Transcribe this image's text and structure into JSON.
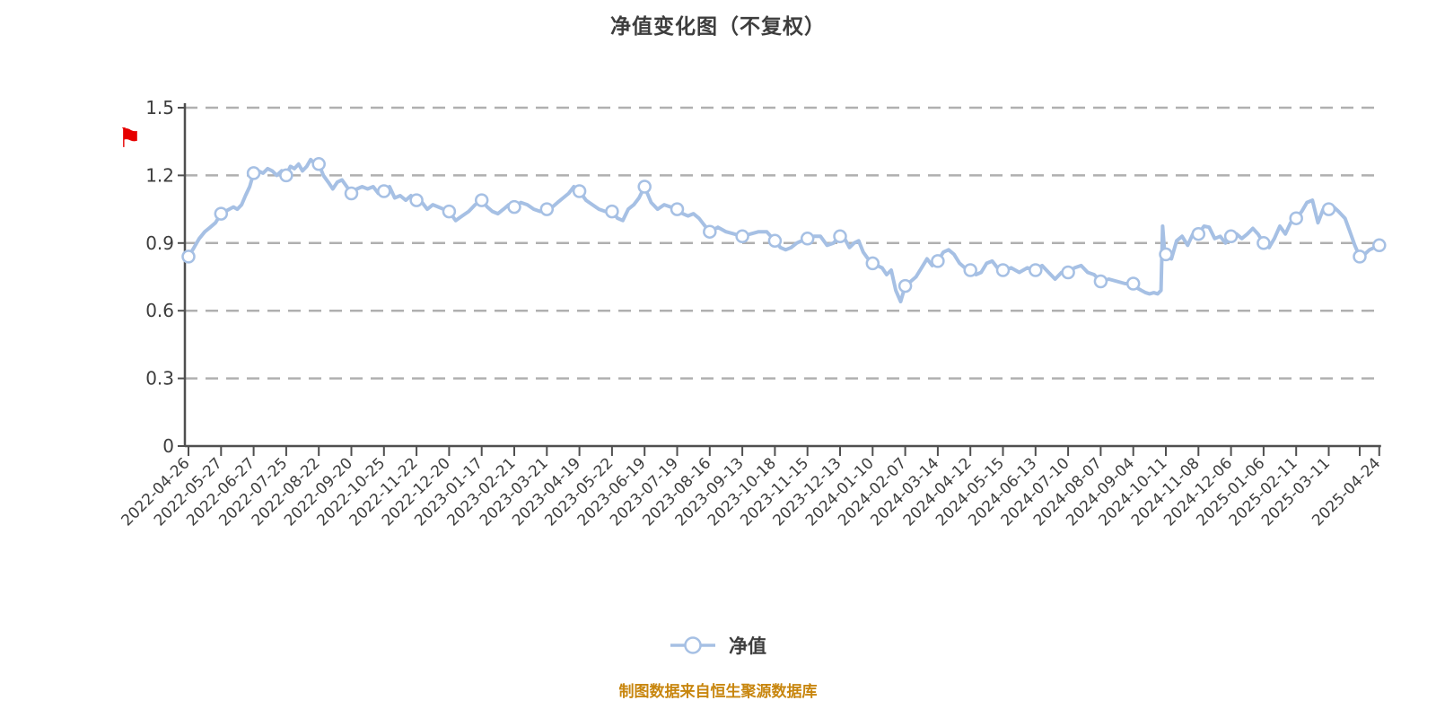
{
  "title": "净值变化图（不复权）",
  "legend": {
    "label": "净值"
  },
  "footer": {
    "source_note": "制图数据来自恒生聚源数据库"
  },
  "flag_annotation": {
    "symbol": "⚑",
    "color": "#e60000"
  },
  "colors": {
    "background": "#ffffff",
    "line": "#a6c0e4",
    "marker_fill": "#ffffff",
    "marker_stroke": "#a6c0e4",
    "grid": "#b0b0b0",
    "axis": "#4f4f4f",
    "tick_text": "#3d3d3d",
    "title_text": "#3d3d3d",
    "footer_text": "#c8860e",
    "flag": "#e60000"
  },
  "chart_data": {
    "type": "line",
    "title": "净值变化图（不复权）",
    "ylabel": "",
    "xlabel": "",
    "ylim": [
      0,
      1.5
    ],
    "yticks": [
      0,
      0.3,
      0.6,
      0.9,
      1.2,
      1.5
    ],
    "grid": "horizontal-dashed",
    "legend_position": "bottom-center",
    "x_ticks": [
      {
        "u": 0,
        "label": "2022-04-26"
      },
      {
        "u": 1,
        "label": "2022-05-27"
      },
      {
        "u": 2,
        "label": "2022-06-27"
      },
      {
        "u": 3,
        "label": "2022-07-25"
      },
      {
        "u": 4,
        "label": "2022-08-22"
      },
      {
        "u": 5,
        "label": "2022-09-20"
      },
      {
        "u": 6,
        "label": "2022-10-25"
      },
      {
        "u": 7,
        "label": "2022-11-22"
      },
      {
        "u": 8,
        "label": "2022-12-20"
      },
      {
        "u": 9,
        "label": "2023-01-17"
      },
      {
        "u": 10,
        "label": "2023-02-21"
      },
      {
        "u": 11,
        "label": "2023-03-21"
      },
      {
        "u": 12,
        "label": "2023-04-19"
      },
      {
        "u": 13,
        "label": "2023-05-22"
      },
      {
        "u": 14,
        "label": "2023-06-19"
      },
      {
        "u": 15,
        "label": "2023-07-19"
      },
      {
        "u": 16,
        "label": "2023-08-16"
      },
      {
        "u": 17,
        "label": "2023-09-13"
      },
      {
        "u": 18,
        "label": "2023-10-18"
      },
      {
        "u": 19,
        "label": "2023-11-15"
      },
      {
        "u": 20,
        "label": "2023-12-13"
      },
      {
        "u": 21,
        "label": "2024-01-10"
      },
      {
        "u": 22,
        "label": "2024-02-07"
      },
      {
        "u": 23,
        "label": "2024-03-14"
      },
      {
        "u": 24,
        "label": "2024-04-12"
      },
      {
        "u": 25,
        "label": "2024-05-15"
      },
      {
        "u": 26,
        "label": "2024-06-13"
      },
      {
        "u": 27,
        "label": "2024-07-10"
      },
      {
        "u": 28,
        "label": "2024-08-07"
      },
      {
        "u": 29,
        "label": "2024-09-04"
      },
      {
        "u": 30,
        "label": "2024-10-11"
      },
      {
        "u": 31,
        "label": "2024-11-08"
      },
      {
        "u": 32,
        "label": "2024-12-06"
      },
      {
        "u": 33,
        "label": "2025-01-06"
      },
      {
        "u": 34,
        "label": "2025-02-11"
      },
      {
        "u": 35,
        "label": "2025-03-11"
      },
      {
        "u": 35.95,
        "label": ""
      },
      {
        "u": 36.55,
        "label": "2025-04-24"
      }
    ],
    "series": [
      {
        "name": "净值",
        "points": [
          [
            0,
            0.84
          ],
          [
            0.17,
            0.88
          ],
          [
            0.33,
            0.92
          ],
          [
            0.5,
            0.95
          ],
          [
            0.67,
            0.97
          ],
          [
            0.83,
            0.99
          ],
          [
            1,
            1.03
          ],
          [
            1.13,
            1.04
          ],
          [
            1.25,
            1.05
          ],
          [
            1.38,
            1.06
          ],
          [
            1.5,
            1.05
          ],
          [
            1.63,
            1.07
          ],
          [
            1.75,
            1.11
          ],
          [
            1.88,
            1.15
          ],
          [
            2,
            1.21
          ],
          [
            2.14,
            1.22
          ],
          [
            2.29,
            1.21
          ],
          [
            2.43,
            1.23
          ],
          [
            2.57,
            1.22
          ],
          [
            2.71,
            1.2
          ],
          [
            2.86,
            1.22
          ],
          [
            3,
            1.2
          ],
          [
            3.13,
            1.24
          ],
          [
            3.25,
            1.23
          ],
          [
            3.38,
            1.25
          ],
          [
            3.5,
            1.22
          ],
          [
            3.63,
            1.24
          ],
          [
            3.75,
            1.27
          ],
          [
            3.88,
            1.25
          ],
          [
            4,
            1.25
          ],
          [
            4.14,
            1.2
          ],
          [
            4.29,
            1.17
          ],
          [
            4.43,
            1.14
          ],
          [
            4.57,
            1.17
          ],
          [
            4.71,
            1.18
          ],
          [
            4.86,
            1.15
          ],
          [
            5,
            1.12
          ],
          [
            5.17,
            1.14
          ],
          [
            5.33,
            1.15
          ],
          [
            5.5,
            1.14
          ],
          [
            5.67,
            1.15
          ],
          [
            5.83,
            1.12
          ],
          [
            6,
            1.13
          ],
          [
            6.17,
            1.15
          ],
          [
            6.33,
            1.1
          ],
          [
            6.5,
            1.11
          ],
          [
            6.67,
            1.09
          ],
          [
            6.83,
            1.11
          ],
          [
            7,
            1.09
          ],
          [
            7.17,
            1.08
          ],
          [
            7.33,
            1.05
          ],
          [
            7.5,
            1.07
          ],
          [
            7.67,
            1.06
          ],
          [
            7.83,
            1.05
          ],
          [
            8,
            1.04
          ],
          [
            8.2,
            1.0
          ],
          [
            8.4,
            1.02
          ],
          [
            8.6,
            1.04
          ],
          [
            8.8,
            1.07
          ],
          [
            9,
            1.09
          ],
          [
            9.17,
            1.06
          ],
          [
            9.33,
            1.04
          ],
          [
            9.5,
            1.03
          ],
          [
            9.67,
            1.05
          ],
          [
            9.83,
            1.07
          ],
          [
            10,
            1.06
          ],
          [
            10.2,
            1.08
          ],
          [
            10.4,
            1.07
          ],
          [
            10.6,
            1.05
          ],
          [
            10.8,
            1.04
          ],
          [
            11,
            1.05
          ],
          [
            11.17,
            1.06
          ],
          [
            11.33,
            1.08
          ],
          [
            11.5,
            1.1
          ],
          [
            11.67,
            1.12
          ],
          [
            11.83,
            1.15
          ],
          [
            12,
            1.13
          ],
          [
            12.2,
            1.09
          ],
          [
            12.4,
            1.07
          ],
          [
            12.6,
            1.05
          ],
          [
            12.8,
            1.04
          ],
          [
            13,
            1.04
          ],
          [
            13.17,
            1.01
          ],
          [
            13.33,
            1.0
          ],
          [
            13.5,
            1.05
          ],
          [
            13.67,
            1.07
          ],
          [
            13.83,
            1.1
          ],
          [
            14,
            1.15
          ],
          [
            14.2,
            1.08
          ],
          [
            14.4,
            1.05
          ],
          [
            14.6,
            1.07
          ],
          [
            14.8,
            1.06
          ],
          [
            15,
            1.05
          ],
          [
            15.17,
            1.03
          ],
          [
            15.33,
            1.02
          ],
          [
            15.5,
            1.03
          ],
          [
            15.67,
            1.01
          ],
          [
            15.83,
            0.98
          ],
          [
            16,
            0.95
          ],
          [
            16.25,
            0.97
          ],
          [
            16.5,
            0.95
          ],
          [
            16.75,
            0.94
          ],
          [
            17,
            0.93
          ],
          [
            17.25,
            0.94
          ],
          [
            17.5,
            0.95
          ],
          [
            17.75,
            0.95
          ],
          [
            18,
            0.91
          ],
          [
            18.17,
            0.88
          ],
          [
            18.33,
            0.87
          ],
          [
            18.5,
            0.88
          ],
          [
            18.67,
            0.9
          ],
          [
            18.83,
            0.91
          ],
          [
            19,
            0.92
          ],
          [
            19.2,
            0.93
          ],
          [
            19.4,
            0.93
          ],
          [
            19.6,
            0.89
          ],
          [
            19.8,
            0.9
          ],
          [
            20,
            0.93
          ],
          [
            20.14,
            0.92
          ],
          [
            20.29,
            0.88
          ],
          [
            20.43,
            0.9
          ],
          [
            20.57,
            0.91
          ],
          [
            20.71,
            0.86
          ],
          [
            20.86,
            0.83
          ],
          [
            21,
            0.81
          ],
          [
            21.14,
            0.8
          ],
          [
            21.29,
            0.79
          ],
          [
            21.43,
            0.76
          ],
          [
            21.57,
            0.78
          ],
          [
            21.71,
            0.69
          ],
          [
            21.86,
            0.64
          ],
          [
            22,
            0.71
          ],
          [
            22.17,
            0.73
          ],
          [
            22.33,
            0.75
          ],
          [
            22.5,
            0.79
          ],
          [
            22.67,
            0.83
          ],
          [
            22.83,
            0.8
          ],
          [
            23,
            0.82
          ],
          [
            23.17,
            0.86
          ],
          [
            23.33,
            0.87
          ],
          [
            23.5,
            0.85
          ],
          [
            23.67,
            0.81
          ],
          [
            23.83,
            0.79
          ],
          [
            24,
            0.78
          ],
          [
            24.17,
            0.76
          ],
          [
            24.33,
            0.77
          ],
          [
            24.5,
            0.81
          ],
          [
            24.67,
            0.82
          ],
          [
            24.83,
            0.79
          ],
          [
            25,
            0.78
          ],
          [
            25.25,
            0.79
          ],
          [
            25.5,
            0.77
          ],
          [
            25.75,
            0.79
          ],
          [
            26,
            0.78
          ],
          [
            26.2,
            0.8
          ],
          [
            26.4,
            0.77
          ],
          [
            26.6,
            0.74
          ],
          [
            26.8,
            0.77
          ],
          [
            27,
            0.77
          ],
          [
            27.2,
            0.79
          ],
          [
            27.4,
            0.8
          ],
          [
            27.6,
            0.77
          ],
          [
            27.8,
            0.76
          ],
          [
            28,
            0.73
          ],
          [
            28.25,
            0.74
          ],
          [
            28.5,
            0.73
          ],
          [
            28.75,
            0.72
          ],
          [
            29,
            0.72
          ],
          [
            29.13,
            0.7
          ],
          [
            29.25,
            0.69
          ],
          [
            29.38,
            0.68
          ],
          [
            29.5,
            0.675
          ],
          [
            29.63,
            0.68
          ],
          [
            29.75,
            0.675
          ],
          [
            29.85,
            0.69
          ],
          [
            29.9,
            0.975
          ],
          [
            29.95,
            0.88
          ],
          [
            30,
            0.85
          ],
          [
            30.17,
            0.83
          ],
          [
            30.33,
            0.91
          ],
          [
            30.5,
            0.93
          ],
          [
            30.67,
            0.89
          ],
          [
            30.83,
            0.94
          ],
          [
            31,
            0.94
          ],
          [
            31.17,
            0.975
          ],
          [
            31.33,
            0.97
          ],
          [
            31.5,
            0.92
          ],
          [
            31.67,
            0.93
          ],
          [
            31.83,
            0.9
          ],
          [
            32,
            0.93
          ],
          [
            32.17,
            0.94
          ],
          [
            32.33,
            0.92
          ],
          [
            32.5,
            0.94
          ],
          [
            32.67,
            0.965
          ],
          [
            32.83,
            0.94
          ],
          [
            33,
            0.9
          ],
          [
            33.17,
            0.88
          ],
          [
            33.33,
            0.92
          ],
          [
            33.5,
            0.975
          ],
          [
            33.67,
            0.94
          ],
          [
            33.83,
            0.99
          ],
          [
            34,
            1.01
          ],
          [
            34.17,
            1.04
          ],
          [
            34.33,
            1.08
          ],
          [
            34.5,
            1.09
          ],
          [
            34.67,
            0.99
          ],
          [
            34.83,
            1.05
          ],
          [
            35,
            1.05
          ],
          [
            35.15,
            1.06
          ],
          [
            35.3,
            1.04
          ],
          [
            35.5,
            1.01
          ],
          [
            35.65,
            0.95
          ],
          [
            35.8,
            0.89
          ],
          [
            35.95,
            0.84
          ],
          [
            36.1,
            0.85
          ],
          [
            36.25,
            0.87
          ],
          [
            36.4,
            0.88
          ],
          [
            36.55,
            0.89
          ]
        ],
        "markers": [
          [
            0,
            0.84
          ],
          [
            1,
            1.03
          ],
          [
            2,
            1.21
          ],
          [
            3,
            1.2
          ],
          [
            4,
            1.25
          ],
          [
            5,
            1.12
          ],
          [
            6,
            1.13
          ],
          [
            7,
            1.09
          ],
          [
            8,
            1.04
          ],
          [
            9,
            1.09
          ],
          [
            10,
            1.06
          ],
          [
            11,
            1.05
          ],
          [
            12,
            1.13
          ],
          [
            13,
            1.04
          ],
          [
            14,
            1.15
          ],
          [
            15,
            1.05
          ],
          [
            16,
            0.95
          ],
          [
            17,
            0.93
          ],
          [
            18,
            0.91
          ],
          [
            19,
            0.92
          ],
          [
            20,
            0.93
          ],
          [
            21,
            0.81
          ],
          [
            22,
            0.71
          ],
          [
            23,
            0.82
          ],
          [
            24,
            0.78
          ],
          [
            25,
            0.78
          ],
          [
            26,
            0.78
          ],
          [
            27,
            0.77
          ],
          [
            28,
            0.73
          ],
          [
            29,
            0.72
          ],
          [
            30,
            0.85
          ],
          [
            31,
            0.94
          ],
          [
            32,
            0.93
          ],
          [
            33,
            0.9
          ],
          [
            34,
            1.01
          ],
          [
            35,
            1.05
          ],
          [
            35.95,
            0.84
          ],
          [
            36.55,
            0.89
          ]
        ]
      }
    ]
  }
}
